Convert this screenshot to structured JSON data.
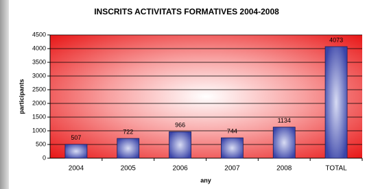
{
  "chart_data": {
    "type": "bar",
    "title": "INSCRITS ACTIVITATS FORMATIVES 2004-2008",
    "x_label": "any",
    "y_label": "participants",
    "categories": [
      "2004",
      "2005",
      "2006",
      "2007",
      "2008",
      "TOTAL"
    ],
    "values": [
      507,
      722,
      966,
      744,
      1134,
      4073
    ],
    "color": "#3a44a8",
    "ylim": [
      0,
      4500
    ],
    "yticks": [
      0,
      500,
      1000,
      1500,
      2000,
      2500,
      3000,
      3500,
      4000,
      4500
    ],
    "grid": true
  }
}
